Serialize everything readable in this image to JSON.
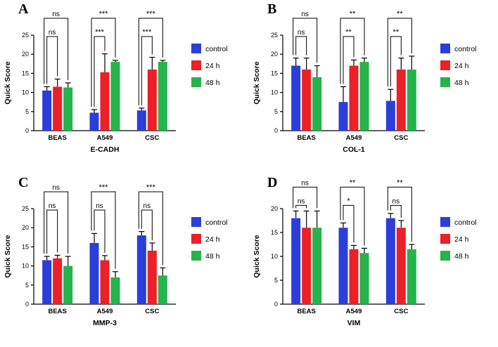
{
  "figure": {
    "ylabel": "Quick Score",
    "legend": {
      "items": [
        {
          "label": "control",
          "color": "#2c3ed9"
        },
        {
          "label": "24 h",
          "color": "#ec2027"
        },
        {
          "label": "48 h",
          "color": "#25b34b"
        }
      ]
    },
    "axis_color": "#000000"
  },
  "chart_data": [
    {
      "type": "bar",
      "panel": "A",
      "title": "E-CADH",
      "ylabel": "Quick Score",
      "categories": [
        "BEAS",
        "A549",
        "CSC"
      ],
      "yticks": [
        0,
        5,
        10,
        15,
        20,
        25
      ],
      "ylim": [
        0,
        25
      ],
      "legend_position": "right",
      "series": [
        {
          "name": "control",
          "color": "#2c3ed9",
          "values": [
            10.5,
            4.7,
            5.3
          ],
          "errors": [
            1.0,
            0.8,
            0.6
          ]
        },
        {
          "name": "24 h",
          "color": "#ec2027",
          "values": [
            11.5,
            15.3,
            16.0
          ],
          "errors": [
            2.0,
            4.8,
            3.2
          ]
        },
        {
          "name": "48 h",
          "color": "#25b34b",
          "values": [
            11.3,
            18.0,
            18.0
          ],
          "errors": [
            1.2,
            0.4,
            0.4
          ]
        }
      ],
      "significance": [
        {
          "group": "BEAS",
          "inner": "ns",
          "outer": "ns"
        },
        {
          "group": "A549",
          "inner": "***",
          "outer": "***"
        },
        {
          "group": "CSC",
          "inner": "***",
          "outer": "***"
        }
      ]
    },
    {
      "type": "bar",
      "panel": "B",
      "title": "COL-1",
      "ylabel": "Quick Score",
      "categories": [
        "BEAS",
        "A549",
        "CSC"
      ],
      "yticks": [
        0,
        5,
        10,
        15,
        20,
        25
      ],
      "ylim": [
        0,
        25
      ],
      "legend_position": "right",
      "series": [
        {
          "name": "control",
          "color": "#2c3ed9",
          "values": [
            17.0,
            7.5,
            7.8
          ],
          "errors": [
            2.0,
            4.0,
            3.0
          ]
        },
        {
          "name": "24 h",
          "color": "#ec2027",
          "values": [
            16.0,
            17.0,
            16.0
          ],
          "errors": [
            3.0,
            1.5,
            3.0
          ]
        },
        {
          "name": "48 h",
          "color": "#25b34b",
          "values": [
            14.0,
            18.0,
            16.0
          ],
          "errors": [
            3.0,
            1.0,
            3.5
          ]
        }
      ],
      "significance": [
        {
          "group": "BEAS",
          "inner": "ns",
          "outer": "ns"
        },
        {
          "group": "A549",
          "inner": "**",
          "outer": "**"
        },
        {
          "group": "CSC",
          "inner": "**",
          "outer": "**"
        }
      ]
    },
    {
      "type": "bar",
      "panel": "C",
      "title": "MMP-3",
      "ylabel": "Quick Score",
      "categories": [
        "BEAS",
        "A549",
        "CSC"
      ],
      "yticks": [
        0,
        5,
        10,
        15,
        20,
        25
      ],
      "ylim": [
        0,
        25
      ],
      "legend_position": "right",
      "series": [
        {
          "name": "control",
          "color": "#2c3ed9",
          "values": [
            11.5,
            16.0,
            18.0
          ],
          "errors": [
            1.0,
            2.5,
            1.0
          ]
        },
        {
          "name": "24 h",
          "color": "#ec2027",
          "values": [
            12.0,
            11.5,
            14.0
          ],
          "errors": [
            0.8,
            1.2,
            2.0
          ]
        },
        {
          "name": "48 h",
          "color": "#25b34b",
          "values": [
            10.0,
            7.0,
            7.5
          ],
          "errors": [
            2.5,
            1.5,
            2.0
          ]
        }
      ],
      "significance": [
        {
          "group": "BEAS",
          "inner": "ns",
          "outer": "ns"
        },
        {
          "group": "A549",
          "inner": "ns",
          "outer": "***"
        },
        {
          "group": "CSC",
          "inner": "ns",
          "outer": "***"
        }
      ]
    },
    {
      "type": "bar",
      "panel": "D",
      "title": "VIM",
      "ylabel": "Quick Score",
      "categories": [
        "BEAS",
        "A549",
        "CSC"
      ],
      "yticks": [
        0,
        5,
        10,
        15,
        20
      ],
      "ylim": [
        0,
        20
      ],
      "legend_position": "right",
      "series": [
        {
          "name": "control",
          "color": "#2c3ed9",
          "values": [
            18.0,
            16.0,
            18.0
          ],
          "errors": [
            1.5,
            1.0,
            1.0
          ]
        },
        {
          "name": "24 h",
          "color": "#ec2027",
          "values": [
            16.0,
            11.5,
            16.0
          ],
          "errors": [
            3.5,
            0.8,
            1.5
          ]
        },
        {
          "name": "48 h",
          "color": "#25b34b",
          "values": [
            16.0,
            10.7,
            11.5
          ],
          "errors": [
            3.5,
            1.0,
            1.0
          ]
        }
      ],
      "significance": [
        {
          "group": "BEAS",
          "inner": "ns",
          "outer": "ns"
        },
        {
          "group": "A549",
          "inner": "*",
          "outer": "**"
        },
        {
          "group": "CSC",
          "inner": "ns",
          "outer": "**"
        }
      ]
    }
  ]
}
